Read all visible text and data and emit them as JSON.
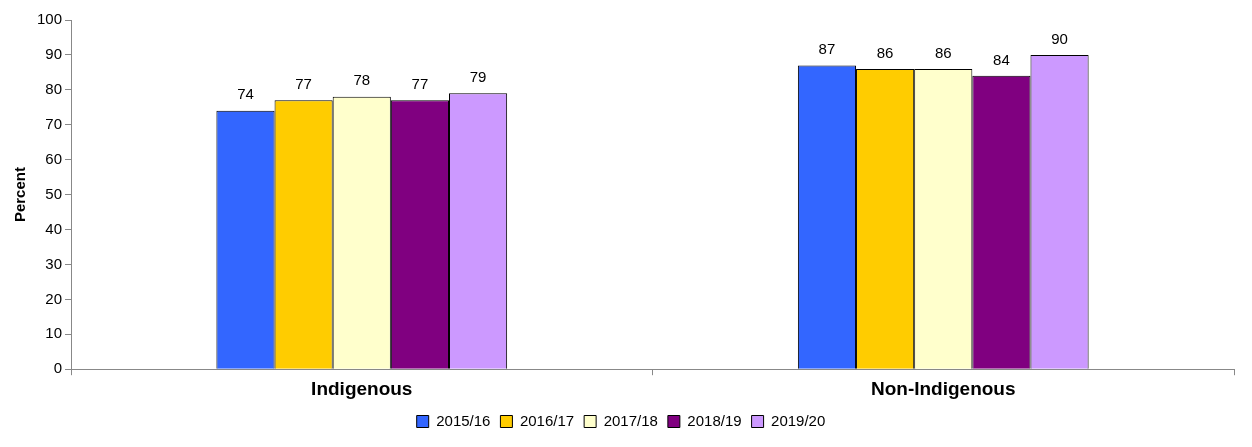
{
  "chart_data": {
    "type": "bar",
    "ylabel": "Percent",
    "categories": [
      "Indigenous",
      "Non-Indigenous"
    ],
    "series": [
      {
        "name": "2015/16",
        "color": "#3366ff",
        "values": [
          74,
          87
        ]
      },
      {
        "name": "2016/17",
        "color": "#ffcc00",
        "values": [
          77,
          86
        ]
      },
      {
        "name": "2017/18",
        "color": "#ffffcc",
        "values": [
          78,
          86
        ]
      },
      {
        "name": "2018/19",
        "color": "#800080",
        "values": [
          77,
          84
        ]
      },
      {
        "name": "2019/20",
        "color": "#cc99ff",
        "values": [
          79,
          90
        ]
      }
    ],
    "ylim": [
      0,
      100
    ],
    "yticks": [
      0,
      10,
      20,
      30,
      40,
      50,
      60,
      70,
      80,
      90,
      100
    ],
    "grid": false,
    "legend": "bottom",
    "data_labels": true
  }
}
